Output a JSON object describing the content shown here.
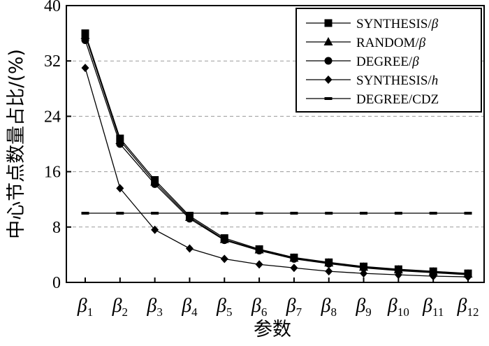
{
  "chart_data": {
    "type": "line",
    "title": "",
    "xlabel": "参数",
    "ylabel": "中心节点数量占比/(%)",
    "ylim": [
      0,
      40
    ],
    "yticks": [
      "0",
      "8",
      "16",
      "24",
      "32",
      "40"
    ],
    "categories": [
      "β1",
      "β2",
      "β3",
      "β4",
      "β5",
      "β6",
      "β7",
      "β8",
      "β9",
      "β10",
      "β11",
      "β12"
    ],
    "category_parts": [
      {
        "base": "β",
        "sub": "1"
      },
      {
        "base": "β",
        "sub": "2"
      },
      {
        "base": "β",
        "sub": "3"
      },
      {
        "base": "β",
        "sub": "4"
      },
      {
        "base": "β",
        "sub": "5"
      },
      {
        "base": "β",
        "sub": "6"
      },
      {
        "base": "β",
        "sub": "7"
      },
      {
        "base": "β",
        "sub": "8"
      },
      {
        "base": "β",
        "sub": "9"
      },
      {
        "base": "β",
        "sub": "10"
      },
      {
        "base": "β",
        "sub": "11"
      },
      {
        "base": "β",
        "sub": "12"
      }
    ],
    "grid": "horizontal-dashed",
    "legend_position": "top-right",
    "series": [
      {
        "name": "SYNTHESIS/β",
        "label_prefix": "SYNTHESIS/",
        "label_symbol": "β",
        "marker": "square",
        "values": [
          36.0,
          20.8,
          14.8,
          9.6,
          6.4,
          4.8,
          3.6,
          2.9,
          2.3,
          1.9,
          1.6,
          1.3
        ]
      },
      {
        "name": "RANDOM/β",
        "label_prefix": "RANDOM/",
        "label_symbol": "β",
        "marker": "triangle",
        "values": [
          35.7,
          20.5,
          14.5,
          9.4,
          6.2,
          4.7,
          3.5,
          2.8,
          2.2,
          1.8,
          1.5,
          1.2
        ]
      },
      {
        "name": "DEGREE/β",
        "label_prefix": "DEGREE/",
        "label_symbol": "β",
        "marker": "circle",
        "values": [
          35.0,
          20.0,
          14.2,
          9.2,
          6.1,
          4.6,
          3.4,
          2.7,
          2.1,
          1.7,
          1.4,
          1.1
        ]
      },
      {
        "name": "SYNTHESIS/h",
        "label_prefix": "SYNTHESIS/",
        "label_symbol": "h",
        "marker": "diamond",
        "values": [
          31.0,
          13.6,
          7.6,
          4.9,
          3.4,
          2.6,
          2.1,
          1.6,
          1.3,
          1.1,
          0.9,
          0.8
        ]
      },
      {
        "name": "DEGREE/CDZ",
        "label_prefix": "DEGREE/CDZ",
        "label_symbol": "",
        "marker": "dash",
        "values": [
          10,
          10,
          10,
          10,
          10,
          10,
          10,
          10,
          10,
          10,
          10,
          10
        ]
      }
    ]
  }
}
